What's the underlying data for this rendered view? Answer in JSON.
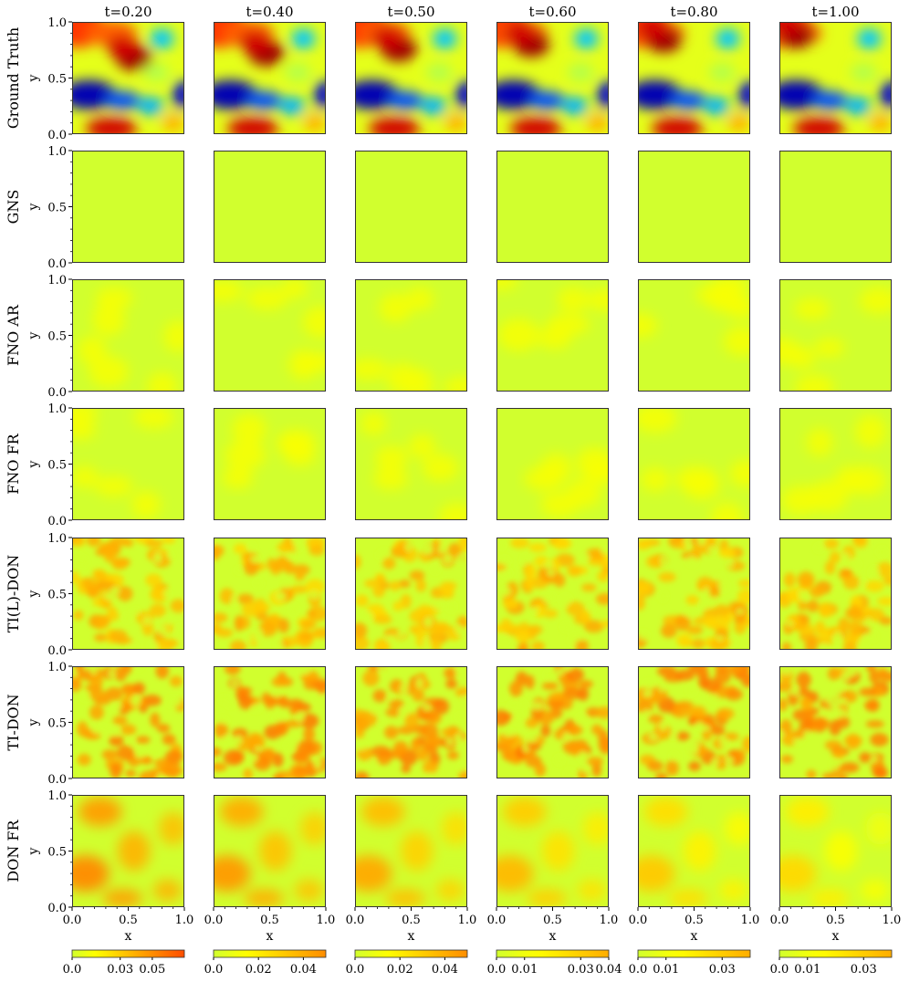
{
  "chart_data": {
    "type": "heatmap",
    "columns": [
      "t=0.20",
      "t=0.40",
      "t=0.50",
      "t=0.60",
      "t=0.80",
      "t=1.00"
    ],
    "rows": [
      "Ground Truth",
      "GNS",
      "FNO AR",
      "FNO FR",
      "TI(L)-DON",
      "TI-DON",
      "DON FR"
    ],
    "xlabel": "x",
    "ylabel": "y",
    "xlim": [
      0.0,
      1.0
    ],
    "ylim": [
      0.0,
      1.0
    ],
    "x_ticks": [
      "0.0",
      "0.5",
      "1.0"
    ],
    "y_ticks": [
      "0.0",
      "0.5",
      "1.0"
    ],
    "colormap": "jet",
    "colorbars": [
      {
        "column": "t=0.20",
        "range": [
          0.0,
          0.07
        ],
        "ticks": [
          "0.0",
          "0.03",
          "0.05"
        ]
      },
      {
        "column": "t=0.40",
        "range": [
          0.0,
          0.05
        ],
        "ticks": [
          "0.0",
          "0.02",
          "0.04"
        ]
      },
      {
        "column": "t=0.50",
        "range": [
          0.0,
          0.05
        ],
        "ticks": [
          "0.0",
          "0.02",
          "0.04"
        ]
      },
      {
        "column": "t=0.60",
        "range": [
          0.0,
          0.04
        ],
        "ticks": [
          "0.0",
          "0.01",
          "0.03",
          "0.04"
        ]
      },
      {
        "column": "t=0.80",
        "range": [
          0.0,
          0.04
        ],
        "ticks": [
          "0.0",
          "0.01",
          "0.03"
        ]
      },
      {
        "column": "t=1.00",
        "range": [
          0.0,
          0.04
        ],
        "ticks": [
          "0.0",
          "0.01",
          "0.03"
        ]
      }
    ],
    "row_patterns": {
      "Ground Truth": "smooth field: high lobe upper-middle, low lobe left at y~0.35, high strip at bottom",
      "GNS": "uniform low (flat)",
      "FNO AR": "near-uniform low with faint blobs",
      "FNO FR": "near-uniform low with faint blobs",
      "TI(L)-DON": "cellular small-scale pattern, low-moderate",
      "TI-DON": "cellular small-scale pattern, moderate",
      "DON FR": "large-scale blobs, decaying over time"
    }
  }
}
